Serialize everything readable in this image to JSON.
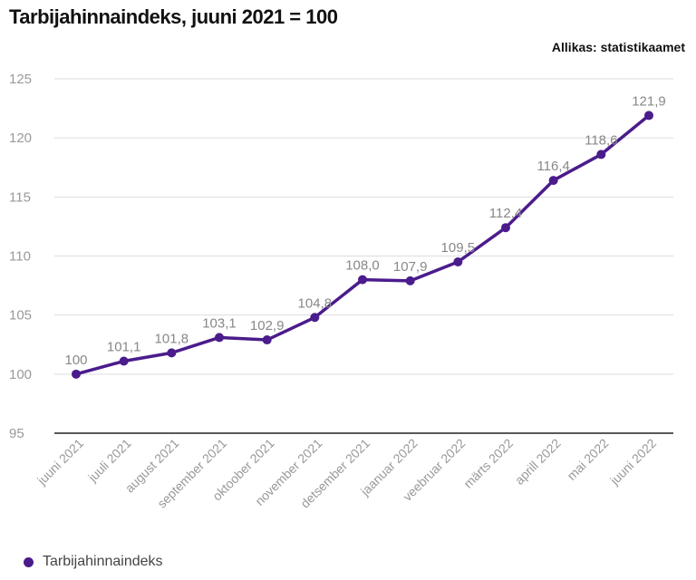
{
  "chart_data": {
    "type": "line",
    "title": "Tarbijahinnaindeks, juuni 2021 = 100",
    "source": "Allikas: statistikaamet",
    "categories": [
      "juuni 2021",
      "juuli 2021",
      "august 2021",
      "september 2021",
      "oktoober 2021",
      "november 2021",
      "detsember 2021",
      "jaanuar 2022",
      "veebruar 2022",
      "märts 2022",
      "aprill 2022",
      "mai 2022",
      "juuni 2022"
    ],
    "series": [
      {
        "name": "Tarbijahinnaindeks",
        "color": "#4b1c8c",
        "values": [
          100,
          101.1,
          101.8,
          103.1,
          102.9,
          104.8,
          108.0,
          107.9,
          109.5,
          112.4,
          116.4,
          118.6,
          121.9
        ],
        "labels": [
          "100",
          "101,1",
          "101,8",
          "103,1",
          "102,9",
          "104,8",
          "108,0",
          "107,9",
          "109,5",
          "112,4",
          "116,4",
          "118,6",
          "121,9"
        ]
      }
    ],
    "yticks": [
      "95",
      "100",
      "105",
      "110",
      "115",
      "120",
      "125"
    ],
    "ylim": [
      95,
      125
    ],
    "grid": true,
    "legend": "bottom-left"
  }
}
